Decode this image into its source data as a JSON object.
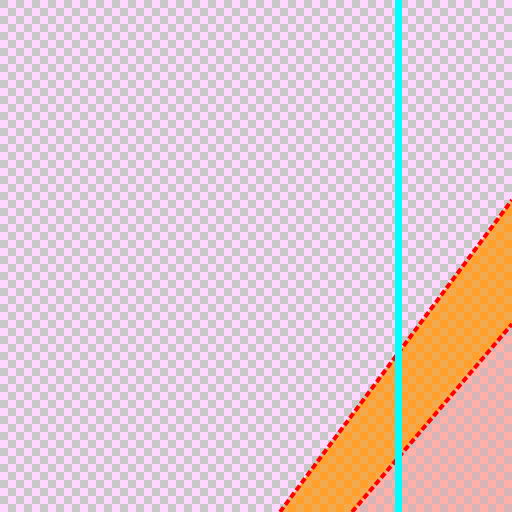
{
  "canvas": {
    "colors": {
      "checker_light": "#ffd6ff",
      "checker_dark": "#c8c8c8",
      "band_fill": "#ffa02c",
      "band_alt": "#f3a94e",
      "region_fill": "#ffb0a8",
      "region_alt": "#d8b4b4",
      "edge_line": "#ff0000",
      "guide_line": "#00ffff"
    },
    "icons": {
      "checkerboard": "transparency-checkerboard-icon",
      "guide": "vertical-guide-line"
    }
  }
}
